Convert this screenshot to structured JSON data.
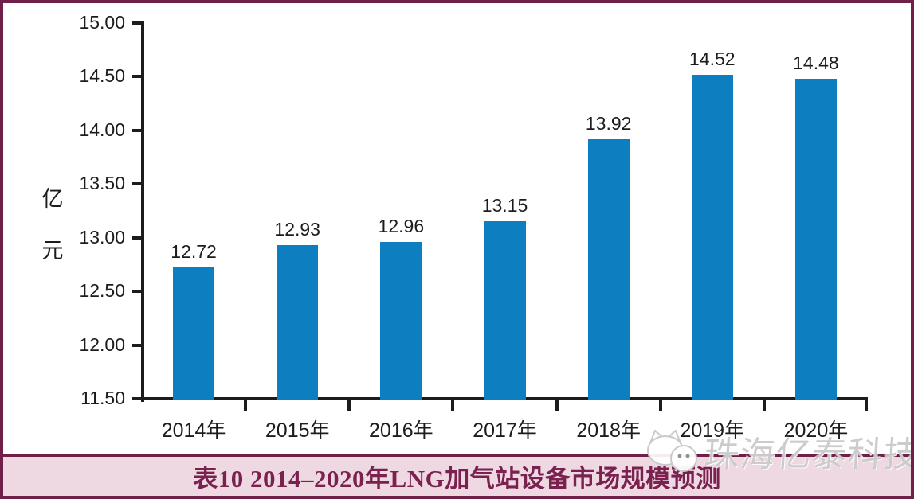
{
  "frame": {
    "border_color": "#6e2048",
    "background": "#ffffff"
  },
  "chart_data": {
    "type": "bar",
    "title": "表10 2014–2020年LNG加气站设备市场规模预测",
    "categories": [
      "2014年",
      "2015年",
      "2016年",
      "2017年",
      "2018年",
      "2019年",
      "2020年"
    ],
    "values": [
      12.72,
      12.93,
      12.96,
      13.15,
      13.92,
      14.52,
      14.48
    ],
    "value_labels": [
      "12.72",
      "12.93",
      "12.96",
      "13.15",
      "13.92",
      "14.52",
      "14.48"
    ],
    "xlabel": "",
    "ylabel": "亿元",
    "ylim": [
      11.5,
      15.0
    ],
    "ytick_step": 0.5,
    "ytick_labels": [
      "11.50",
      "12.00",
      "12.50",
      "13.00",
      "13.50",
      "14.00",
      "14.50",
      "15.00"
    ],
    "grid": false,
    "legend_position": "none",
    "bar_color": "#0d7fc1",
    "axis_color": "#1c1c1c"
  },
  "caption": {
    "text": "表10 2014–2020年LNG加气站设备市场规模预测",
    "text_color": "#7a2150",
    "bg_color": "#eed8e2"
  },
  "watermark": {
    "text": "珠海亿泰科技",
    "logo_icon": "cat-chat-bubbles-icon",
    "color": "#c3c3c3"
  }
}
